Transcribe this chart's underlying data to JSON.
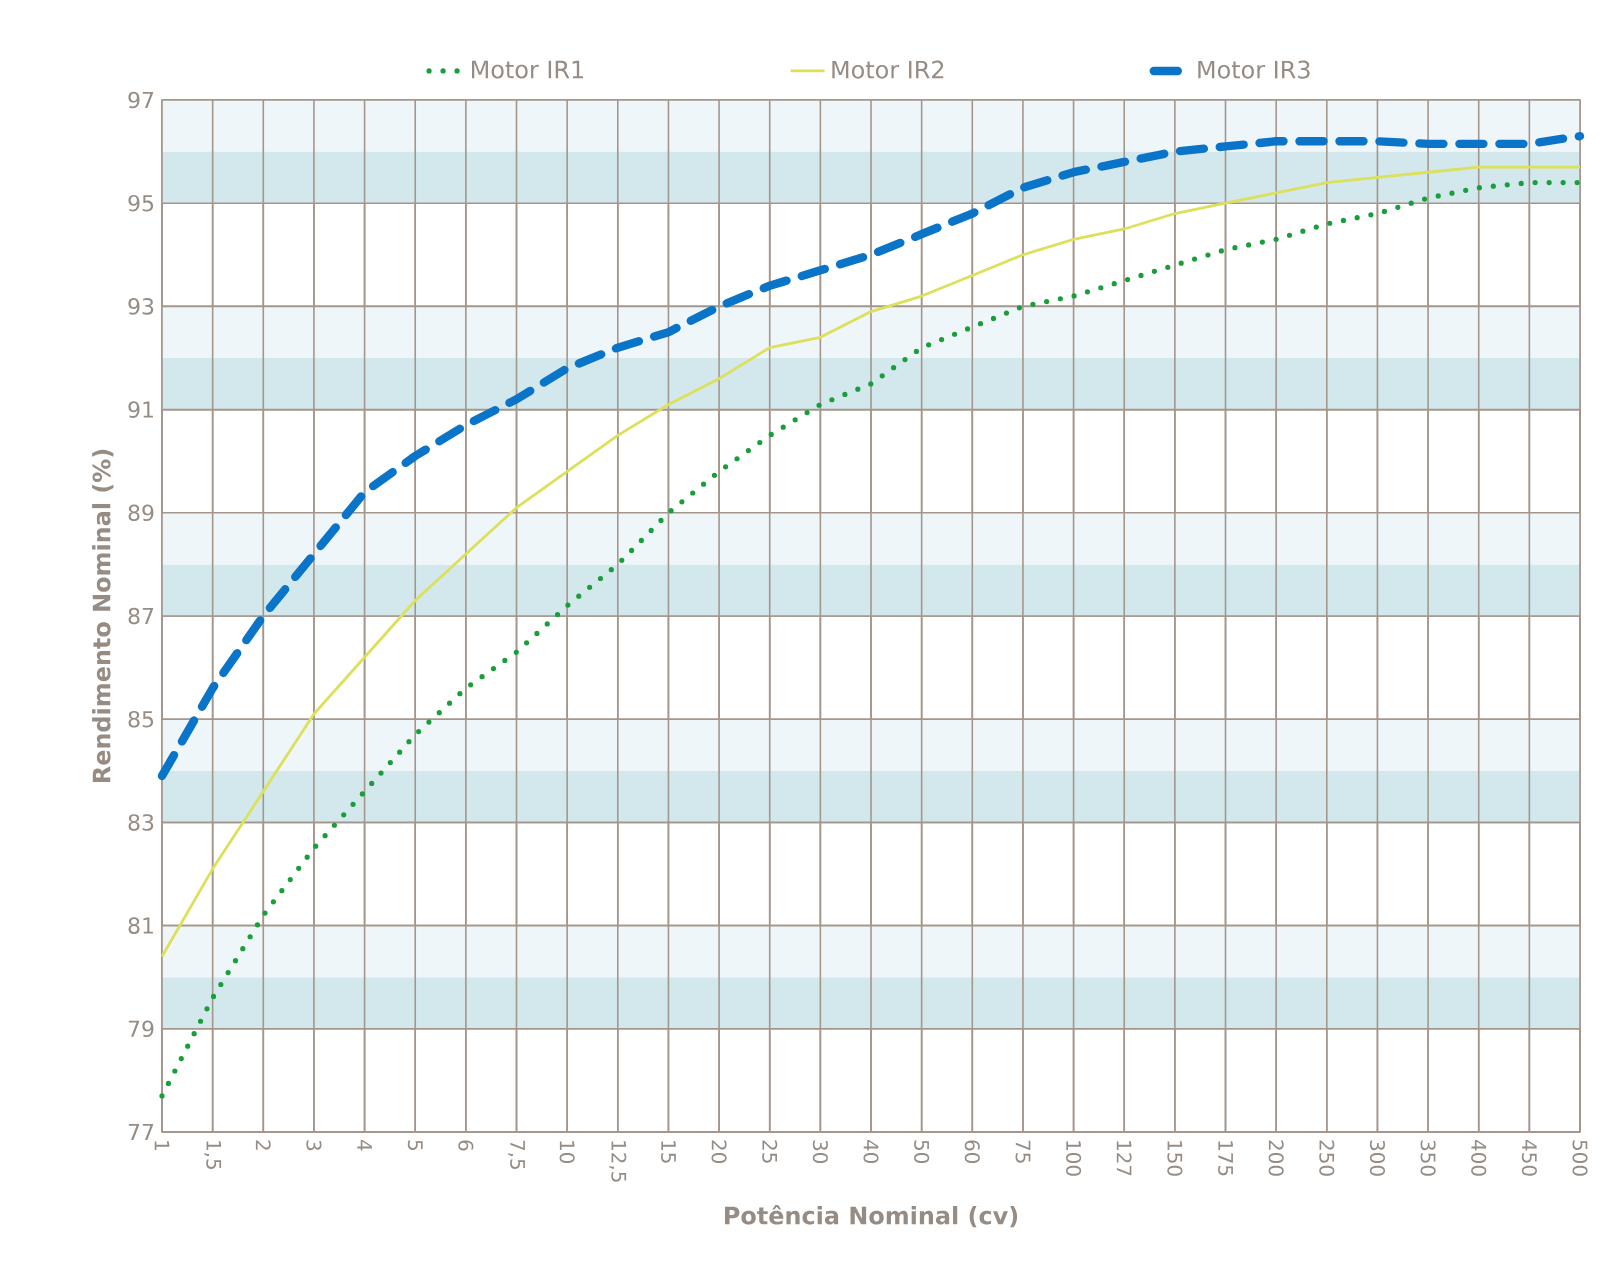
{
  "chart_data": {
    "type": "line",
    "xlabel": "Potência Nominal (cv)",
    "ylabel": "Rendimento Nominal (%)",
    "categories": [
      "1",
      "1,5",
      "2",
      "3",
      "4",
      "5",
      "6",
      "7,5",
      "10",
      "12,5",
      "15",
      "20",
      "25",
      "30",
      "40",
      "50",
      "60",
      "75",
      "100",
      "127",
      "150",
      "175",
      "200",
      "250",
      "300",
      "350",
      "400",
      "450",
      "500"
    ],
    "ylim": [
      77,
      97
    ],
    "yticks": [
      77,
      79,
      81,
      83,
      85,
      87,
      89,
      91,
      93,
      95,
      97
    ],
    "grid": true,
    "legend": "top",
    "marker": "none",
    "bands": [
      {
        "axis": "y",
        "from": 79,
        "to": 80,
        "color": "#d2e8ed"
      },
      {
        "axis": "y",
        "from": 80,
        "to": 81,
        "color": "#eef6f9"
      },
      {
        "axis": "y",
        "from": 83,
        "to": 84,
        "color": "#d2e8ed"
      },
      {
        "axis": "y",
        "from": 84,
        "to": 85,
        "color": "#eef6f9"
      },
      {
        "axis": "y",
        "from": 87,
        "to": 88,
        "color": "#d2e8ed"
      },
      {
        "axis": "y",
        "from": 88,
        "to": 89,
        "color": "#eef6f9"
      },
      {
        "axis": "y",
        "from": 91,
        "to": 92,
        "color": "#d2e8ed"
      },
      {
        "axis": "y",
        "from": 92,
        "to": 93,
        "color": "#eef6f9"
      },
      {
        "axis": "y",
        "from": 95,
        "to": 96,
        "color": "#d2e8ed"
      },
      {
        "axis": "y",
        "from": 96,
        "to": 97,
        "color": "#eef6f9"
      }
    ],
    "series": [
      {
        "name": "Motor IR1",
        "color": "#1a9e3a",
        "line_style": "dotted",
        "values": [
          77.7,
          79.6,
          81.2,
          82.5,
          83.6,
          84.7,
          85.6,
          86.3,
          87.2,
          88.0,
          89.0,
          89.8,
          90.5,
          91.1,
          91.5,
          92.2,
          92.6,
          93.0,
          93.2,
          93.5,
          93.8,
          94.1,
          94.3,
          94.6,
          94.8,
          95.1,
          95.3,
          95.4,
          95.4
        ]
      },
      {
        "name": "Motor IR2",
        "color": "#dde05a",
        "line_style": "solid",
        "values": [
          80.4,
          82.1,
          83.6,
          85.1,
          86.2,
          87.3,
          88.2,
          89.1,
          89.8,
          90.5,
          91.1,
          91.6,
          92.2,
          92.4,
          92.9,
          93.2,
          93.6,
          94.0,
          94.3,
          94.5,
          94.8,
          95.0,
          95.2,
          95.4,
          95.5,
          95.6,
          95.7,
          95.7,
          95.7
        ]
      },
      {
        "name": "Motor IR3",
        "color": "#0a74c8",
        "line_style": "dashed",
        "values": [
          83.9,
          85.6,
          87.0,
          88.2,
          89.4,
          90.1,
          90.7,
          91.2,
          91.8,
          92.2,
          92.5,
          93.0,
          93.4,
          93.7,
          94.0,
          94.4,
          94.8,
          95.3,
          95.6,
          95.8,
          96.0,
          96.1,
          96.2,
          96.2,
          96.2,
          96.15,
          96.15,
          96.15,
          96.3
        ]
      }
    ]
  }
}
